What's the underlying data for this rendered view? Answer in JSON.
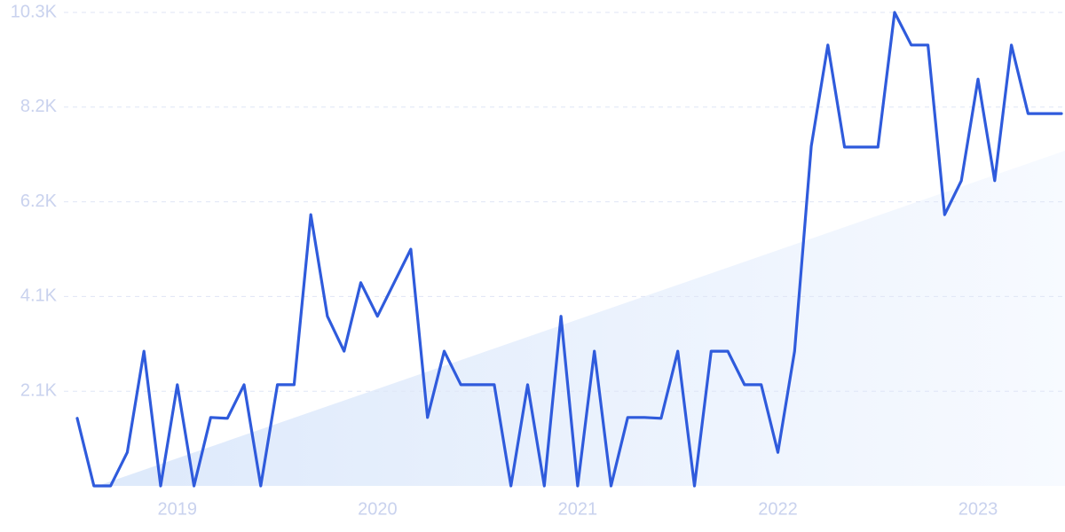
{
  "chart_data": {
    "type": "line",
    "categories": [
      null,
      null,
      null,
      null,
      null,
      null,
      "2019",
      null,
      null,
      null,
      null,
      null,
      null,
      null,
      null,
      null,
      null,
      null,
      "2020",
      null,
      null,
      null,
      null,
      null,
      null,
      null,
      null,
      null,
      null,
      null,
      "2021",
      null,
      null,
      null,
      null,
      null,
      null,
      null,
      null,
      null,
      null,
      null,
      "2022",
      null,
      null,
      null,
      null,
      null,
      null,
      null,
      null,
      null,
      null,
      null,
      "2023",
      null,
      null,
      null,
      null,
      null
    ],
    "series": [
      {
        "color": "#2f5bdc",
        "values": [
          1470,
          0,
          0,
          730,
          2930,
          0,
          2200,
          0,
          1490,
          1470,
          2200,
          0,
          2200,
          2200,
          5900,
          3690,
          2930,
          4420,
          3690,
          4420,
          5150,
          1490,
          2930,
          2200,
          2200,
          2200,
          0,
          2200,
          0,
          3690,
          0,
          2930,
          0,
          1490,
          1490,
          1470,
          2930,
          0,
          2930,
          2930,
          2200,
          2200,
          730,
          2930,
          7390,
          9590,
          7370,
          7370,
          7370,
          10300,
          9590,
          9590,
          5900,
          6640,
          8850,
          6640,
          9590,
          8100,
          8100,
          8100
        ]
      }
    ],
    "ylim": [
      0,
      10300
    ],
    "yticks": [
      {
        "value": 2060,
        "label": "2.1K"
      },
      {
        "value": 4120,
        "label": "4.1K"
      },
      {
        "value": 6180,
        "label": "6.2K"
      },
      {
        "value": 8240,
        "label": "8.2K"
      },
      {
        "value": 10300,
        "label": "10.3K"
      }
    ],
    "grid": true
  }
}
